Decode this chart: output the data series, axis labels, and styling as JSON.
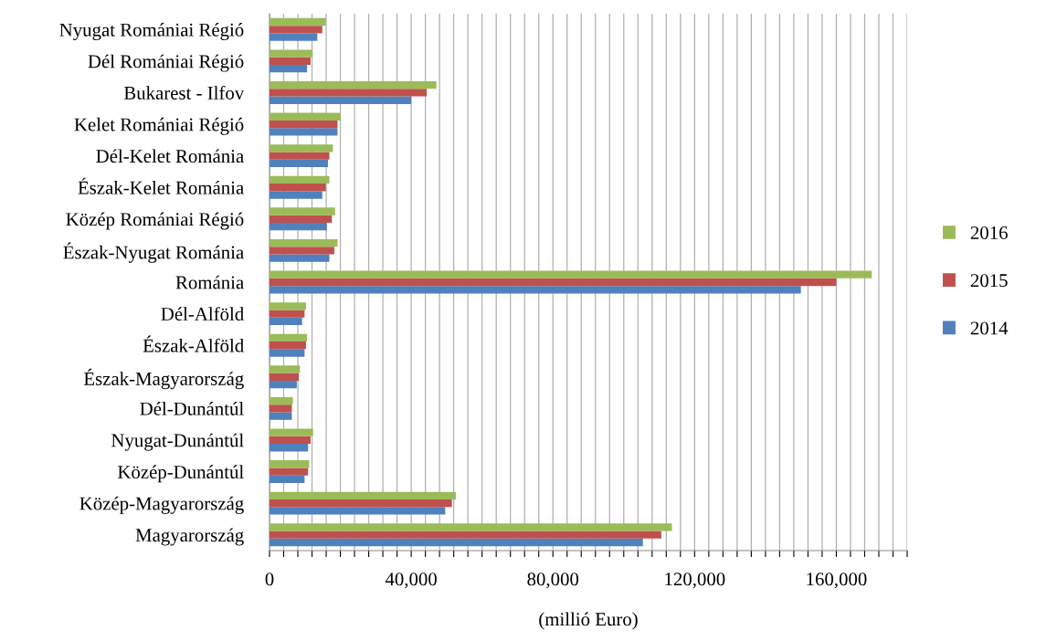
{
  "chart_data": {
    "type": "bar",
    "orientation": "horizontal",
    "xlabel": "(millió Euro)",
    "categories": [
      "Nyugat Romániai Régió",
      "Dél Romániai Régió",
      "Bukarest - Ilfov",
      "Kelet Romániai Régió",
      "Dél-Kelet Románia",
      "Észak-Kelet Románia",
      "Közép Romániai Régió",
      "Észak-Nyugat Románia",
      "Románia",
      "Dél-Alföld",
      "Észak-Alföld",
      "Észak-Magyarország",
      "Dél-Dunántúl",
      "Nyugat-Dunántúl",
      "Közép-Dunántúl",
      "Közép-Magyarország",
      "Magyarország"
    ],
    "series": [
      {
        "name": "2014",
        "color": "#4f81bd",
        "values": [
          13500,
          10600,
          40000,
          19200,
          16500,
          14900,
          16200,
          16900,
          150000,
          9200,
          9900,
          7700,
          6300,
          10900,
          9900,
          49600,
          105400
        ]
      },
      {
        "name": "2015",
        "color": "#c0504d",
        "values": [
          14900,
          11600,
          44400,
          19200,
          16900,
          15900,
          17600,
          18300,
          160000,
          9900,
          10300,
          8300,
          6300,
          11600,
          10900,
          51500,
          110600
        ]
      },
      {
        "name": "2016",
        "color": "#9bbb59",
        "values": [
          15900,
          12200,
          47100,
          20100,
          17900,
          16900,
          18500,
          19200,
          170000,
          10300,
          10600,
          8600,
          6600,
          12300,
          11200,
          52600,
          113600
        ]
      }
    ],
    "xlim": [
      0,
      180000
    ],
    "xticks": [
      0,
      {
        "value": 4000,
        "label": null
      },
      {
        "value": 8000,
        "label": null
      },
      {
        "value": 12000,
        "label": null
      },
      {
        "value": 16000,
        "label": null
      },
      {
        "value": 20000,
        "label": null
      },
      {
        "value": 24000,
        "label": null
      },
      {
        "value": 28000,
        "label": null
      },
      {
        "value": 32000,
        "label": null
      },
      {
        "value": 36000,
        "label": null
      },
      {
        "value": 40000,
        "label": "40,000"
      },
      {
        "value": 44000,
        "label": null
      },
      {
        "value": 48000,
        "label": null
      },
      {
        "value": 52000,
        "label": null
      },
      {
        "value": 56000,
        "label": null
      },
      {
        "value": 60000,
        "label": null
      },
      {
        "value": 64000,
        "label": null
      },
      {
        "value": 68000,
        "label": null
      },
      {
        "value": 72000,
        "label": null
      },
      {
        "value": 76000,
        "label": null
      },
      {
        "value": 80000,
        "label": "80,000"
      },
      {
        "value": 84000,
        "label": null
      },
      {
        "value": 88000,
        "label": null
      },
      {
        "value": 92000,
        "label": null
      },
      {
        "value": 96000,
        "label": null
      },
      {
        "value": 100000,
        "label": null
      },
      {
        "value": 104000,
        "label": null
      },
      {
        "value": 108000,
        "label": null
      },
      {
        "value": 112000,
        "label": null
      },
      {
        "value": 116000,
        "label": null
      },
      {
        "value": 120000,
        "label": "120,000"
      },
      {
        "value": 124000,
        "label": null
      },
      {
        "value": 128000,
        "label": null
      },
      {
        "value": 132000,
        "label": null
      },
      {
        "value": 136000,
        "label": null
      },
      {
        "value": 140000,
        "label": null
      },
      {
        "value": 144000,
        "label": null
      },
      {
        "value": 148000,
        "label": null
      },
      {
        "value": 152000,
        "label": null
      },
      {
        "value": 156000,
        "label": null
      },
      {
        "value": 160000,
        "label": "160,000"
      },
      {
        "value": 164000,
        "label": null
      },
      {
        "value": 168000,
        "label": null
      },
      {
        "value": 172000,
        "label": null
      },
      {
        "value": 176000,
        "label": null
      },
      {
        "value": 180000,
        "label": null
      }
    ],
    "grid": "x",
    "legend": "right"
  }
}
